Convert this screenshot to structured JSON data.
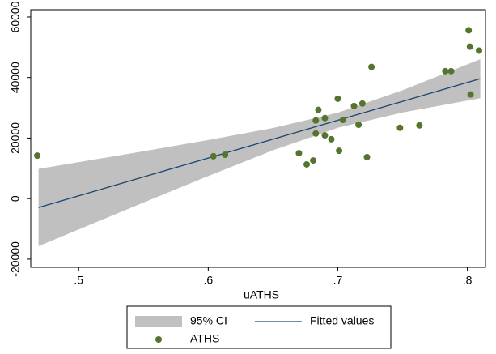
{
  "chart_data": {
    "type": "scatter",
    "x_label": "uATHS",
    "xlim": [
      0.463,
      0.814
    ],
    "ylim": [
      -22700,
      62400
    ],
    "xticks": [
      {
        "value": 0.5,
        "label": ".5"
      },
      {
        "value": 0.6,
        "label": ".6"
      },
      {
        "value": 0.7,
        "label": ".7"
      },
      {
        "value": 0.8,
        "label": ".8"
      }
    ],
    "yticks": [
      -20000,
      0,
      20000,
      40000,
      60000
    ],
    "grid": false,
    "legend_position": "bottom",
    "series": [
      {
        "name": "95% CI",
        "kind": "band",
        "color": "#c0c0c0",
        "x": [
          0.469,
          0.55,
          0.6,
          0.65,
          0.7,
          0.75,
          0.81
        ],
        "lower": [
          -15700,
          -1320,
          7450,
          15960,
          23380,
          28440,
          33160
        ],
        "upper": [
          9800,
          15640,
          19350,
          23320,
          28380,
          35800,
          46060
        ]
      },
      {
        "name": "Fitted values",
        "kind": "line",
        "color": "#1a476f",
        "x": [
          0.469,
          0.81
        ],
        "values": [
          -2950,
          39610
        ]
      },
      {
        "name": "ATHS",
        "kind": "points",
        "color": "#55752f",
        "x": [
          0.468,
          0.604,
          0.613,
          0.67,
          0.676,
          0.681,
          0.683,
          0.683,
          0.685,
          0.69,
          0.69,
          0.695,
          0.7,
          0.701,
          0.704,
          0.7125,
          0.716,
          0.719,
          0.7225,
          0.726,
          0.748,
          0.763,
          0.783,
          0.7875,
          0.801,
          0.802,
          0.8025,
          0.809
        ],
        "values": [
          14200,
          14000,
          14500,
          15000,
          11300,
          12600,
          21500,
          25800,
          29300,
          26600,
          20900,
          19600,
          33000,
          15800,
          26000,
          30600,
          24400,
          31400,
          13700,
          43500,
          23400,
          24200,
          42100,
          42100,
          55600,
          50200,
          34400,
          48900
        ]
      }
    ]
  }
}
